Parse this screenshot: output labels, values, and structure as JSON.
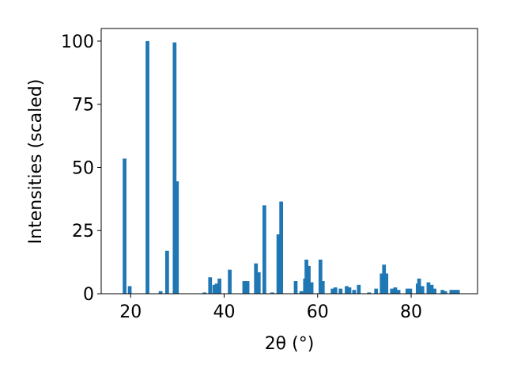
{
  "chart_data": {
    "type": "bar",
    "xlabel": "2θ (°)",
    "ylabel": "Intensities (scaled)",
    "color": "#1f77b4",
    "x": [
      18.7,
      19.8,
      23.6,
      26.4,
      27.8,
      29.4,
      29.9,
      35.8,
      37.0,
      37.9,
      38.4,
      39.0,
      41.2,
      44.3,
      45.0,
      46.8,
      47.4,
      48.6,
      50.3,
      51.6,
      52.2,
      55.3,
      56.5,
      57.3,
      57.6,
      58.1,
      58.7,
      60.6,
      61.1,
      63.2,
      63.8,
      64.9,
      66.2,
      66.8,
      67.8,
      68.8,
      71.0,
      72.5,
      73.7,
      74.2,
      74.7,
      75.9,
      76.6,
      77.3,
      79.2,
      79.8,
      81.4,
      81.7,
      82.4,
      83.7,
      84.4,
      85.0,
      86.7,
      87.3,
      88.6,
      89.3,
      90.0
    ],
    "values": [
      53.5,
      3,
      100,
      1,
      17,
      99.5,
      44.5,
      0.5,
      6.5,
      3.5,
      4,
      6,
      9.5,
      5,
      5,
      12,
      8.5,
      35,
      0.5,
      23.5,
      36.5,
      5,
      1,
      6,
      13.5,
      11,
      4.5,
      13.5,
      5,
      2,
      2.5,
      2,
      3,
      2.5,
      1.5,
      3.5,
      0.5,
      2,
      8,
      11.5,
      8,
      2,
      2.5,
      1.5,
      2,
      2,
      4,
      6,
      3,
      4.5,
      3.5,
      2,
      1.5,
      1,
      1.5,
      1.5,
      1.5
    ],
    "xlim": [
      13.7,
      94.2
    ],
    "xticks": [
      20,
      40,
      60,
      80
    ],
    "ylim": [
      0,
      105
    ],
    "yticks": [
      0,
      25,
      50,
      75,
      100
    ]
  }
}
